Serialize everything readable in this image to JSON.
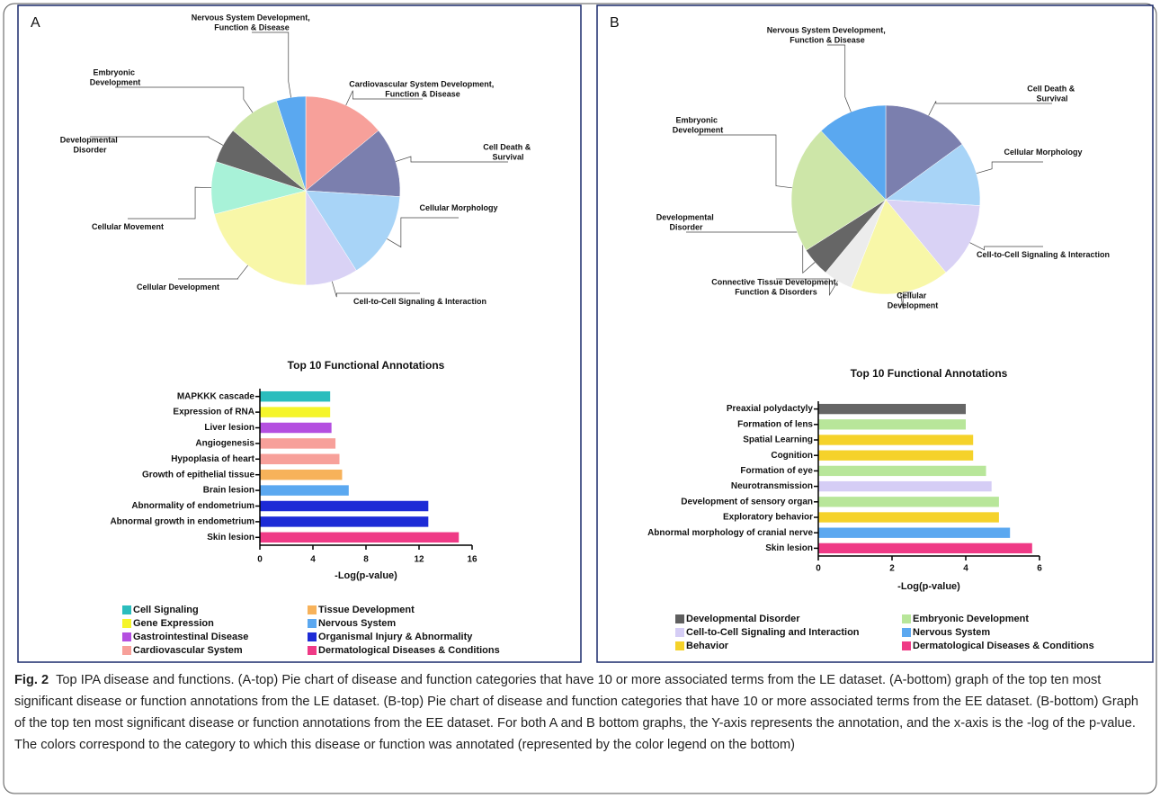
{
  "panels": [
    "A",
    "B"
  ],
  "caption": {
    "label": "Fig. 2",
    "text": "Top IPA disease and functions. (A-top) Pie chart of disease and function categories that have 10 or more associated terms from the LE dataset. (A-bottom) graph of the top ten most significant disease or function annotations from the LE dataset. (B-top) Pie chart of disease and function categories that have 10 or more associated terms from the EE dataset. (B-bottom) Graph of the top ten most significant disease or function annotations from the EE dataset. For both A and B bottom graphs, the Y-axis represents the annotation, and the x-axis is the -log of the p-value. The colors correspond to the category to which this disease or function was annotated (represented by the color legend on the bottom)"
  },
  "chart_data": [
    {
      "type": "pie",
      "categories": [
        "Cardiovascular System Development, Function & Disease",
        "Cell Death & Survival",
        "Cellular Morphology",
        "Cell-to-Cell Signaling & Interaction",
        "Cellular Development",
        "Cellular Movement",
        "Developmental Disorder",
        "Embryonic Development",
        "Nervous System Development, Function & Disease"
      ],
      "values": [
        14,
        12,
        15,
        9,
        21,
        9,
        6,
        9,
        5
      ],
      "colors": [
        "#f7a09a",
        "#7b7fae",
        "#a8d4f7",
        "#d9d2f5",
        "#f8f7a8",
        "#a8f2d8",
        "#666666",
        "#cde6a8",
        "#5aa8f0"
      ]
    },
    {
      "type": "bar",
      "orientation": "horizontal",
      "title": "Top 10 Functional Annotations",
      "categories": [
        "MAPKKK cascade",
        "Expression of RNA",
        "Liver lesion",
        "Angiogenesis",
        "Hypoplasia of heart",
        "Growth of epithelial tissue",
        "Brain lesion",
        "Abnormality of endometrium",
        "Abnormal growth in endometrium",
        "Skin lesion"
      ],
      "values": [
        5.3,
        5.3,
        5.4,
        5.7,
        6.0,
        6.2,
        6.7,
        12.7,
        12.7,
        15.0
      ],
      "colors": [
        "#2bbdbd",
        "#f5f52a",
        "#b44fe0",
        "#f7a09a",
        "#f7a09a",
        "#f7b25a",
        "#5ba8f0",
        "#1d2bd6",
        "#1d2bd6",
        "#ef3a86"
      ],
      "xlabel": "-Log(p-value)",
      "xlim": [
        0,
        16
      ],
      "xticks": [
        0,
        4,
        8,
        12,
        16
      ],
      "legend": [
        {
          "name": "Cell Signaling",
          "color": "#2bbdbd"
        },
        {
          "name": "Gene Expression",
          "color": "#f5f52a"
        },
        {
          "name": "Gastrointestinal Disease",
          "color": "#b44fe0"
        },
        {
          "name": "Cardiovascular System",
          "color": "#f7a09a"
        },
        {
          "name": "Tissue Development",
          "color": "#f7b25a"
        },
        {
          "name": "Nervous System",
          "color": "#5ba8f0"
        },
        {
          "name": "Organismal Injury & Abnormality",
          "color": "#1d2bd6"
        },
        {
          "name": "Dermatological Diseases & Conditions",
          "color": "#ef3a86"
        }
      ]
    },
    {
      "type": "pie",
      "categories": [
        "Cell Death & Survival",
        "Cellular Morphology",
        "Cell-to-Cell Signaling & Interaction",
        "Cellular Development",
        "Connective Tissue Development, Function & Disorders",
        "Developmental Disorder",
        "Embryonic Development",
        "Nervous System Development, Function & Disease"
      ],
      "values": [
        15,
        11,
        13,
        17,
        5,
        5,
        22,
        12
      ],
      "colors": [
        "#7b7fae",
        "#a8d4f7",
        "#d9d2f5",
        "#f8f7a8",
        "#ececec",
        "#666666",
        "#cde6a8",
        "#5aa8f0"
      ]
    },
    {
      "type": "bar",
      "orientation": "horizontal",
      "title": "Top 10 Functional Annotations",
      "categories": [
        "Preaxial polydactyly",
        "Formation of lens",
        "Spatial Learning",
        "Cognition",
        "Formation of eye",
        "Neurotransmission",
        "Development of sensory organ",
        "Exploratory behavior",
        "Abnormal morphology of cranial nerve",
        "Skin lesion"
      ],
      "values": [
        4.0,
        4.0,
        4.2,
        4.2,
        4.55,
        4.7,
        4.9,
        4.9,
        5.2,
        5.8
      ],
      "colors": [
        "#666666",
        "#b8e69a",
        "#f5d22a",
        "#f5d22a",
        "#b8e69a",
        "#d5cdf5",
        "#b8e69a",
        "#f5d22a",
        "#5ba8f0",
        "#ef3a86"
      ],
      "xlabel": "-Log(p-value)",
      "xlim": [
        0,
        6
      ],
      "xticks": [
        0,
        2,
        4,
        6
      ],
      "legend": [
        {
          "name": "Developmental Disorder",
          "color": "#5f5f5f"
        },
        {
          "name": "Cell-to-Cell Signaling and Interaction",
          "color": "#d5cdf5"
        },
        {
          "name": "Behavior",
          "color": "#f5d22a"
        },
        {
          "name": "Embryonic Development",
          "color": "#b8e69a"
        },
        {
          "name": "Nervous System",
          "color": "#5ba8f0"
        },
        {
          "name": "Dermatological Diseases & Conditions",
          "color": "#ef3a86"
        }
      ]
    }
  ]
}
